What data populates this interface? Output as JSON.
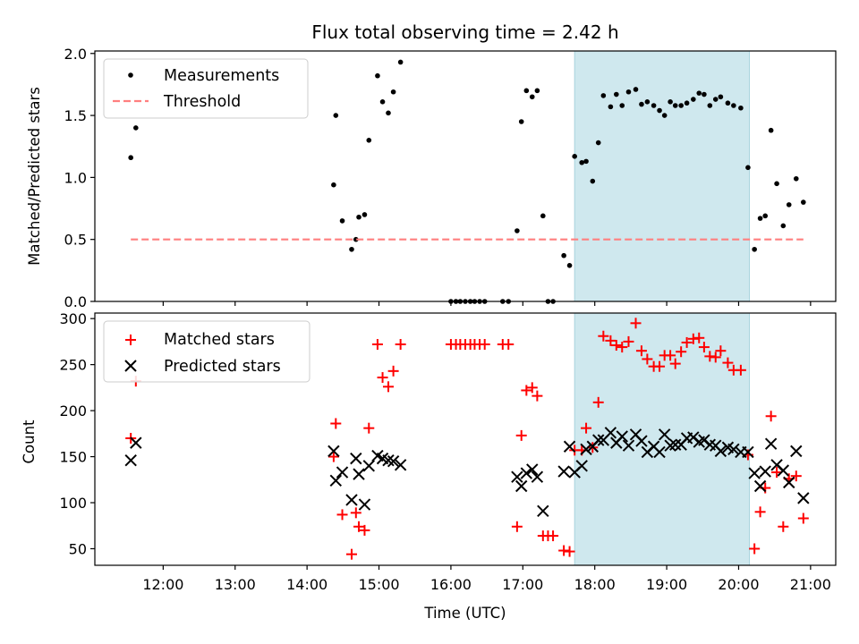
{
  "chart_data": [
    {
      "type": "scatter",
      "title": "Flux total observing time = 2.42 h",
      "xlabel": "",
      "ylabel": "Matched/Predicted stars",
      "xlim": [
        11.05,
        21.35
      ],
      "ylim": [
        0.0,
        2.02
      ],
      "yticks": [
        0.0,
        0.5,
        1.0,
        1.5,
        2.0
      ],
      "ytick_labels": [
        "0.0",
        "0.5",
        "1.0",
        "1.5",
        "2.0"
      ],
      "xticks": [
        12,
        13,
        14,
        15,
        16,
        17,
        18,
        19,
        20,
        21
      ],
      "show_xtick_labels": false,
      "shaded_region": {
        "x0": 17.72,
        "x1": 20.15,
        "color": "#cfe8ee"
      },
      "series": [
        {
          "name": "Measurements",
          "marker": "dot",
          "color": "#000000",
          "x": [
            11.55,
            11.62,
            14.37,
            14.4,
            14.49,
            14.62,
            14.68,
            14.72,
            14.8,
            14.86,
            14.98,
            15.05,
            15.13,
            15.2,
            15.3,
            16.0,
            16.07,
            16.13,
            16.2,
            16.27,
            16.33,
            16.4,
            16.47,
            16.72,
            16.8,
            16.92,
            16.98,
            17.05,
            17.13,
            17.2,
            17.28,
            17.35,
            17.42,
            17.57,
            17.65,
            17.72,
            17.82,
            17.88,
            17.97,
            18.05,
            18.12,
            18.22,
            18.3,
            18.38,
            18.47,
            18.57,
            18.65,
            18.73,
            18.82,
            18.9,
            18.97,
            19.05,
            19.12,
            19.2,
            19.28,
            19.37,
            19.45,
            19.52,
            19.6,
            19.68,
            19.75,
            19.85,
            19.93,
            20.03,
            20.13,
            20.22,
            20.3,
            20.37,
            20.45,
            20.53,
            20.62,
            20.7,
            20.8,
            20.9
          ],
          "y": [
            1.16,
            1.4,
            0.94,
            1.5,
            0.65,
            0.42,
            0.5,
            0.68,
            0.7,
            1.3,
            1.82,
            1.61,
            1.52,
            1.69,
            1.93,
            0.0,
            0.0,
            0.0,
            0.0,
            0.0,
            0.0,
            0.0,
            0.0,
            0.0,
            0.0,
            0.57,
            1.45,
            1.7,
            1.65,
            1.7,
            0.69,
            0.0,
            0.0,
            0.37,
            0.29,
            1.17,
            1.12,
            1.13,
            0.97,
            1.28,
            1.66,
            1.57,
            1.67,
            1.58,
            1.69,
            1.71,
            1.59,
            1.61,
            1.58,
            1.54,
            1.5,
            1.61,
            1.58,
            1.58,
            1.6,
            1.63,
            1.68,
            1.67,
            1.58,
            1.63,
            1.65,
            1.6,
            1.58,
            1.56,
            1.08,
            0.42,
            0.67,
            0.69,
            1.38,
            0.95,
            0.61,
            0.78,
            0.99,
            0.8
          ]
        },
        {
          "name": "Threshold",
          "marker": "dashed-line",
          "color": "#ff7f7f",
          "x": [
            11.55,
            20.9
          ],
          "y": [
            0.5,
            0.5
          ]
        }
      ]
    },
    {
      "type": "scatter",
      "title": "",
      "xlabel": "Time (UTC)",
      "ylabel": "Count",
      "xlim": [
        11.05,
        21.35
      ],
      "ylim": [
        32,
        306
      ],
      "yticks": [
        50,
        100,
        150,
        200,
        250,
        300
      ],
      "ytick_labels": [
        "50",
        "100",
        "150",
        "200",
        "250",
        "300"
      ],
      "xticks": [
        12,
        13,
        14,
        15,
        16,
        17,
        18,
        19,
        20,
        21
      ],
      "xtick_labels": [
        "12:00",
        "13:00",
        "14:00",
        "15:00",
        "16:00",
        "17:00",
        "18:00",
        "19:00",
        "20:00",
        "21:00"
      ],
      "show_xtick_labels": true,
      "shaded_region": {
        "x0": 17.72,
        "x1": 20.15,
        "color": "#cfe8ee"
      },
      "series": [
        {
          "name": "Matched stars",
          "marker": "plus",
          "color": "#ff0000",
          "x": [
            11.55,
            11.62,
            14.37,
            14.4,
            14.49,
            14.62,
            14.68,
            14.72,
            14.8,
            14.86,
            14.98,
            15.05,
            15.13,
            15.2,
            15.3,
            16.0,
            16.07,
            16.13,
            16.2,
            16.27,
            16.33,
            16.4,
            16.47,
            16.72,
            16.8,
            16.92,
            16.98,
            17.05,
            17.13,
            17.2,
            17.28,
            17.35,
            17.42,
            17.57,
            17.65,
            17.72,
            17.82,
            17.88,
            17.97,
            18.05,
            18.12,
            18.22,
            18.3,
            18.38,
            18.47,
            18.57,
            18.65,
            18.73,
            18.82,
            18.9,
            18.97,
            19.05,
            19.12,
            19.2,
            19.28,
            19.37,
            19.45,
            19.52,
            19.6,
            19.68,
            19.75,
            19.85,
            19.93,
            20.03,
            20.13,
            20.22,
            20.3,
            20.37,
            20.45,
            20.53,
            20.62,
            20.7,
            20.8,
            20.9
          ],
          "y": [
            170,
            232,
            150,
            186,
            87,
            44,
            89,
            74,
            70,
            181,
            272,
            236,
            226,
            243,
            272,
            272,
            272,
            272,
            272,
            272,
            272,
            272,
            272,
            272,
            272,
            74,
            173,
            222,
            225,
            216,
            64,
            64,
            64,
            48,
            47,
            157,
            157,
            181,
            160,
            209,
            281,
            276,
            271,
            269,
            275,
            295,
            265,
            256,
            248,
            248,
            260,
            260,
            251,
            264,
            274,
            278,
            279,
            269,
            259,
            258,
            265,
            252,
            244,
            244,
            152,
            50,
            90,
            116,
            194,
            133,
            74,
            126,
            129,
            83
          ]
        },
        {
          "name": "Predicted stars",
          "marker": "x",
          "color": "#000000",
          "x": [
            11.55,
            11.62,
            14.37,
            14.4,
            14.49,
            14.62,
            14.68,
            14.72,
            14.8,
            14.86,
            14.98,
            15.05,
            15.13,
            15.2,
            15.3,
            16.92,
            16.98,
            17.05,
            17.13,
            17.2,
            17.28,
            17.57,
            17.65,
            17.72,
            17.82,
            17.88,
            17.97,
            18.05,
            18.12,
            18.22,
            18.3,
            18.38,
            18.47,
            18.57,
            18.65,
            18.73,
            18.82,
            18.9,
            18.97,
            19.05,
            19.12,
            19.2,
            19.28,
            19.37,
            19.45,
            19.52,
            19.6,
            19.68,
            19.75,
            19.85,
            19.93,
            20.03,
            20.13,
            20.22,
            20.3,
            20.37,
            20.45,
            20.53,
            20.62,
            20.7,
            20.8,
            20.9
          ],
          "y": [
            146,
            165,
            156,
            124,
            133,
            103,
            148,
            131,
            98,
            140,
            151,
            148,
            146,
            145,
            141,
            128,
            118,
            132,
            136,
            128,
            91,
            134,
            161,
            133,
            140,
            158,
            161,
            168,
            168,
            176,
            165,
            172,
            162,
            174,
            167,
            155,
            161,
            155,
            174,
            162,
            163,
            163,
            170,
            171,
            166,
            168,
            163,
            162,
            156,
            160,
            158,
            155,
            155,
            132,
            118,
            134,
            164,
            141,
            135,
            122,
            156,
            105
          ]
        }
      ]
    }
  ],
  "legend_top": [
    {
      "label": "Measurements",
      "marker": "dot",
      "color": "#000000"
    },
    {
      "label": "Threshold",
      "marker": "dashed-line",
      "color": "#ff7f7f"
    }
  ],
  "legend_bottom": [
    {
      "label": "Matched stars",
      "marker": "plus",
      "color": "#ff0000"
    },
    {
      "label": "Predicted stars",
      "marker": "x",
      "color": "#000000"
    }
  ]
}
